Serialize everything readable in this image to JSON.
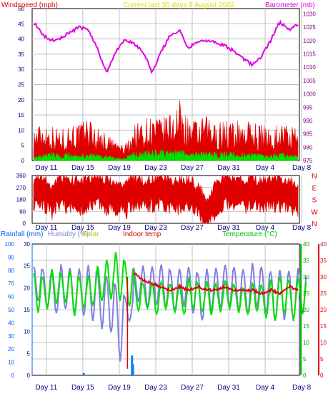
{
  "chart_data": [
    {
      "id": "wind-baro",
      "type": "area",
      "title": "Current last 30 days 9 August 2002",
      "left_axis_label": "Windspeed (mph)",
      "right_axis_label": "Barometer (mb)",
      "left_ticks": [
        "0",
        "5",
        "10",
        "15",
        "20",
        "25",
        "30",
        "35",
        "40",
        "45",
        "50"
      ],
      "right_ticks": [
        "975",
        "980",
        "985",
        "990",
        "995",
        "1000",
        "1005",
        "1010",
        "1015",
        "1020",
        "1025",
        "1030"
      ],
      "x_ticks": [
        "Day 11",
        "Day 15",
        "Day 19",
        "Day 23",
        "Day 27",
        "Day 31",
        "Day 4",
        "Day 8"
      ],
      "ylim_left": [
        0,
        50
      ],
      "ylim_right": [
        975,
        1032
      ],
      "grid": true,
      "series": [
        {
          "label": "Windspeed (mph)",
          "color": "#e00000",
          "type": "area",
          "axis": "left",
          "x": [
            0,
            1,
            2,
            3,
            4,
            5,
            6,
            7,
            8,
            9,
            10,
            11,
            12,
            13,
            14,
            15,
            16,
            17,
            18,
            19,
            20,
            21,
            22,
            23,
            24,
            25,
            26,
            27,
            28,
            29
          ],
          "values": [
            11,
            13,
            12,
            10,
            13,
            12,
            15,
            11,
            9,
            7,
            5,
            12,
            14,
            15,
            14,
            16,
            20,
            14,
            13,
            15,
            12,
            14,
            13,
            14,
            13,
            12,
            11,
            13,
            12,
            10
          ]
        },
        {
          "label": "Windspeed average",
          "color": "#00e000",
          "type": "area",
          "axis": "left",
          "x": [
            0,
            1,
            2,
            3,
            4,
            5,
            6,
            7,
            8,
            9,
            10,
            11,
            12,
            13,
            14,
            15,
            16,
            17,
            18,
            19,
            20,
            21,
            22,
            23,
            24,
            25,
            26,
            27,
            28,
            29
          ],
          "values": [
            2,
            2,
            3,
            2,
            3,
            2,
            3,
            2,
            2,
            1,
            1,
            3,
            3,
            4,
            4,
            3,
            4,
            3,
            3,
            3,
            3,
            3,
            3,
            3,
            3,
            2,
            2,
            3,
            2,
            2
          ]
        },
        {
          "label": "Barometer (mb)",
          "color": "#e000e0",
          "type": "line",
          "axis": "right",
          "x": [
            0,
            1,
            2,
            3,
            4,
            5,
            6,
            7,
            8,
            9,
            10,
            11,
            12,
            13,
            14,
            15,
            16,
            17,
            18,
            19,
            20,
            21,
            22,
            23,
            24,
            25,
            26,
            27,
            28,
            29
          ],
          "values": [
            1027,
            1022,
            1020,
            1021,
            1023,
            1025,
            1024,
            1017,
            1008,
            1016,
            1020,
            1019,
            1016,
            1008,
            1016,
            1022,
            1024,
            1017,
            1020,
            1020,
            1019,
            1018,
            1016,
            1013,
            1011,
            1014,
            1020,
            1027,
            1024,
            1026
          ]
        }
      ]
    },
    {
      "id": "wind-dir",
      "type": "area",
      "left_ticks": [
        "0",
        "90",
        "180",
        "270",
        "360"
      ],
      "right_ticks": [
        "N",
        "W",
        "S",
        "E",
        "N"
      ],
      "x_ticks": [
        "Day 11",
        "Day 15",
        "Day 19",
        "Day 23",
        "Day 27",
        "Day 31",
        "Day 4",
        "Day 8"
      ],
      "ylim": [
        0,
        360
      ],
      "grid": true,
      "series": [
        {
          "label": "Wind direction",
          "color": "#e00000",
          "type": "area",
          "x": [
            0,
            1,
            2,
            3,
            4,
            5,
            6,
            7,
            8,
            9,
            10,
            11,
            12,
            13,
            14,
            15,
            16,
            17,
            18,
            19,
            20,
            21,
            22,
            23,
            24,
            25,
            26,
            27,
            28,
            29
          ],
          "values": [
            250,
            270,
            200,
            260,
            240,
            230,
            250,
            270,
            230,
            210,
            200,
            260,
            240,
            250,
            270,
            220,
            230,
            250,
            190,
            110,
            200,
            280,
            260,
            240,
            260,
            230,
            260,
            250,
            240,
            200
          ]
        }
      ]
    },
    {
      "id": "temp-humidity",
      "type": "line",
      "labels": {
        "rainfall": "Rainfall (mm)",
        "humidity": "Humidity (%)",
        "solar": "Solar",
        "indoor": "Indoor temp",
        "temperature": "Temperature (°C)"
      },
      "left_ticks_outer": [
        "0",
        "10",
        "20",
        "30",
        "40",
        "50",
        "60",
        "70",
        "80",
        "90",
        "100"
      ],
      "left_ticks_inner": [
        "0",
        "5",
        "10",
        "15",
        "20",
        "25",
        "30"
      ],
      "right_ticks_inner": [
        "0",
        "5",
        "10",
        "15",
        "20",
        "25",
        "30",
        "35",
        "40"
      ],
      "right_ticks_outer": [
        "0",
        "5",
        "10",
        "15",
        "20",
        "25",
        "30",
        "35",
        "40"
      ],
      "x_ticks": [
        "Day 11",
        "Day 15",
        "Day 19",
        "Day 23",
        "Day 27",
        "Day 31",
        "Day 4",
        "Day 8"
      ],
      "ylim_temperature": [
        0,
        40
      ],
      "ylim_humidity": [
        0,
        100
      ],
      "ylim_rainfall": [
        0,
        30
      ],
      "grid": true,
      "series": [
        {
          "label": "Humidity (%)",
          "color": "#8080e0",
          "type": "line",
          "axis": "humidity",
          "x": [
            0,
            1,
            2,
            3,
            4,
            5,
            6,
            7,
            8,
            9,
            10,
            11,
            12,
            13,
            14,
            15,
            16,
            17,
            18,
            19,
            20,
            21,
            22,
            23,
            24,
            25,
            26,
            27,
            28,
            29
          ],
          "day_max": [
            85,
            83,
            80,
            85,
            82,
            84,
            86,
            80,
            78,
            70,
            60,
            82,
            84,
            85,
            86,
            80,
            82,
            84,
            80,
            82,
            84,
            86,
            84,
            82,
            86,
            84,
            80,
            82,
            80,
            82
          ],
          "day_min": [
            55,
            50,
            45,
            48,
            46,
            44,
            40,
            35,
            30,
            10,
            40,
            55,
            50,
            52,
            50,
            48,
            52,
            45,
            40,
            48,
            50,
            52,
            48,
            45,
            50,
            45,
            40,
            42,
            40,
            45
          ]
        },
        {
          "label": "Temperature (°C)",
          "color": "#00e000",
          "type": "line",
          "axis": "temperature",
          "x": [
            0,
            1,
            2,
            3,
            4,
            5,
            6,
            7,
            8,
            9,
            10,
            11,
            12,
            13,
            14,
            15,
            16,
            17,
            18,
            19,
            20,
            21,
            22,
            23,
            24,
            25,
            26,
            27,
            28,
            29
          ],
          "day_max": [
            32,
            30,
            33,
            31,
            32,
            30,
            31,
            34,
            36,
            38,
            35,
            30,
            28,
            29,
            29,
            28,
            28,
            30,
            28,
            29,
            28,
            29,
            28,
            27,
            29,
            28,
            30,
            31,
            29,
            30
          ],
          "day_min": [
            19,
            20,
            21,
            22,
            18,
            20,
            21,
            22,
            23,
            22,
            20,
            19,
            20,
            18,
            20,
            19,
            18,
            20,
            19,
            18,
            19,
            20,
            19,
            18,
            19,
            17,
            16,
            18,
            17,
            19
          ]
        },
        {
          "label": "Indoor temp",
          "color": "#e00000",
          "type": "line",
          "axis": "temperature",
          "x": [
            11,
            12,
            13,
            14,
            15,
            16,
            17,
            18,
            19,
            20,
            21,
            22,
            23,
            24,
            25,
            26,
            27,
            28,
            29
          ],
          "values": [
            31,
            29,
            28,
            27,
            26,
            27,
            26,
            27,
            26,
            26,
            27,
            26,
            26,
            26,
            25,
            26,
            25,
            27,
            26
          ]
        },
        {
          "label": "Rainfall (mm)",
          "color": "#0080ff",
          "type": "bar",
          "axis": "rainfall",
          "x": [
            5.5,
            10.8,
            10.9
          ],
          "values": [
            0.5,
            4.5,
            2.5
          ]
        }
      ]
    }
  ]
}
